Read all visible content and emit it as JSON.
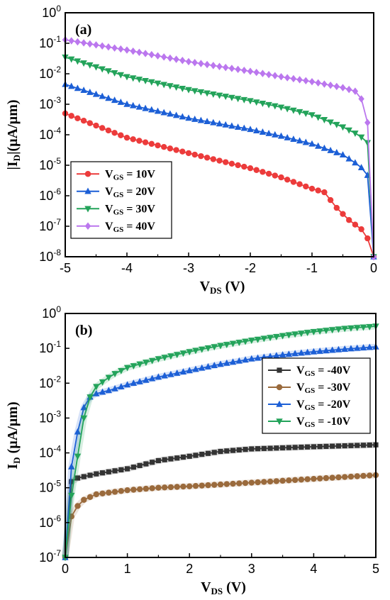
{
  "chart_data": [
    {
      "type": "line",
      "panel_label": "(a)",
      "xlabel": "V",
      "xlabel_sub": "DS",
      "xlabel_unit": " (V)",
      "ylabel": "|I",
      "ylabel_sub": "D",
      "ylabel_unit": "|(µA/µm)",
      "xlim": [
        -5,
        0
      ],
      "ylim_log10": [
        -8,
        0
      ],
      "yscale": "log",
      "xticks": [
        "-5",
        "-4",
        "-3",
        "-2",
        "-1",
        "0"
      ],
      "yticks": [
        {
          "base": "10",
          "exp": "0"
        },
        {
          "base": "10",
          "exp": "-1"
        },
        {
          "base": "10",
          "exp": "-2"
        },
        {
          "base": "10",
          "exp": "-3"
        },
        {
          "base": "10",
          "exp": "-4"
        },
        {
          "base": "10",
          "exp": "-5"
        },
        {
          "base": "10",
          "exp": "-6"
        },
        {
          "base": "10",
          "exp": "-7"
        },
        {
          "base": "10",
          "exp": "-8"
        }
      ],
      "legend_position": "bottom-left",
      "series": [
        {
          "name_main": "V",
          "name_sub": "GS",
          "name_rest": " = 10V",
          "color": "#ec3b3b",
          "marker": "circle",
          "x": [
            -5,
            -4,
            -3,
            -2,
            -1.5,
            -1,
            -0.8,
            -0.6,
            -0.4,
            -0.2,
            -0.1,
            -0.05,
            0
          ],
          "y": [
            0.0005,
            8e-05,
            2.5e-05,
            8e-06,
            4e-06,
            1.7e-06,
            1.3e-06,
            4e-07,
            1.6e-07,
            8e-08,
            4e-08,
            2.5e-08,
            1e-08
          ]
        },
        {
          "name_main": "V",
          "name_sub": "GS",
          "name_rest": " = 20V",
          "color": "#1c5fd6",
          "marker": "triangle-up",
          "x": [
            -5,
            -4,
            -3,
            -2,
            -1.5,
            -1,
            -0.5,
            -0.3,
            -0.15,
            -0.08,
            -0.03,
            0
          ],
          "y": [
            0.0045,
            0.001,
            0.00035,
            0.00015,
            9e-05,
            5e-05,
            2.2e-05,
            1.2e-05,
            7e-06,
            4e-06,
            1e-06,
            1e-08
          ]
        },
        {
          "name_main": "V",
          "name_sub": "GS",
          "name_rest": " = 30V",
          "color": "#23a35a",
          "marker": "triangle-down",
          "x": [
            -5,
            -4,
            -3,
            -2,
            -1.5,
            -1,
            -0.5,
            -0.25,
            -0.15,
            -0.08,
            -0.03,
            0
          ],
          "y": [
            0.035,
            0.008,
            0.003,
            0.0013,
            0.0008,
            0.00045,
            0.00018,
            0.0001,
            7e-05,
            5e-05,
            1e-06,
            1e-08
          ]
        },
        {
          "name_main": "V",
          "name_sub": "GS",
          "name_rest": " = 40V",
          "color": "#bb77ee",
          "marker": "diamond",
          "x": [
            -5,
            -4,
            -3,
            -2,
            -1.5,
            -1,
            -0.5,
            -0.25,
            -0.15,
            -0.08,
            -0.03,
            0
          ],
          "y": [
            0.13,
            0.06,
            0.025,
            0.012,
            0.008,
            0.0055,
            0.0035,
            0.0025,
            0.0009,
            0.00015,
            1e-06,
            1e-08
          ]
        }
      ]
    },
    {
      "type": "line",
      "panel_label": "(b)",
      "xlabel": "V",
      "xlabel_sub": "DS",
      "xlabel_unit": " (V)",
      "ylabel": "I",
      "ylabel_sub": "D",
      "ylabel_unit": " (µA/µm)",
      "xlim": [
        0,
        5
      ],
      "ylim_log10": [
        -7,
        0
      ],
      "yscale": "log",
      "xticks": [
        "0",
        "1",
        "2",
        "3",
        "4",
        "5"
      ],
      "yticks": [
        {
          "base": "10",
          "exp": "0"
        },
        {
          "base": "10",
          "exp": "-1"
        },
        {
          "base": "10",
          "exp": "-2"
        },
        {
          "base": "10",
          "exp": "-3"
        },
        {
          "base": "10",
          "exp": "-4"
        },
        {
          "base": "10",
          "exp": "-5"
        },
        {
          "base": "10",
          "exp": "-6"
        },
        {
          "base": "10",
          "exp": "-7"
        }
      ],
      "legend_position": "top-right",
      "series": [
        {
          "name_main": "V",
          "name_sub": "GS",
          "name_rest": " = -40V",
          "color": "#333333",
          "marker": "square",
          "x": [
            0,
            0.05,
            0.1,
            0.2,
            0.5,
            1,
            1.5,
            2,
            2.5,
            3,
            4,
            5
          ],
          "y": [
            1e-07,
            1e-05,
            1.5e-05,
            1.9e-05,
            2.5e-05,
            3.5e-05,
            6e-05,
            8e-05,
            0.00011,
            0.00013,
            0.00015,
            0.00017
          ]
        },
        {
          "name_main": "V",
          "name_sub": "GS",
          "name_rest": " = -30V",
          "color": "#9a6a3c",
          "marker": "circle",
          "x": [
            0,
            0.05,
            0.1,
            0.2,
            0.3,
            0.5,
            1,
            1.5,
            2,
            3,
            4,
            5
          ],
          "y": [
            1e-07,
            7e-07,
            1.5e-06,
            3e-06,
            4.5e-06,
            6.5e-06,
            8.5e-06,
            1e-05,
            1.1e-05,
            1.4e-05,
            1.8e-05,
            2.3e-05
          ]
        },
        {
          "name_main": "V",
          "name_sub": "GS",
          "name_rest": " = -20V",
          "color": "#1c5fd6",
          "marker": "triangle-up",
          "x": [
            0,
            0.05,
            0.1,
            0.15,
            0.2,
            0.25,
            0.3,
            0.4,
            0.5,
            0.75,
            1,
            1.5,
            2,
            2.5,
            3,
            3.5,
            4,
            4.5,
            5
          ],
          "y": [
            1e-07,
            5e-06,
            4e-05,
            0.00013,
            0.0004,
            0.001,
            0.002,
            0.004,
            0.005,
            0.0065,
            0.009,
            0.015,
            0.023,
            0.035,
            0.05,
            0.065,
            0.08,
            0.095,
            0.11
          ]
        },
        {
          "name_main": "V",
          "name_sub": "GS",
          "name_rest": " = -10V",
          "color": "#23a35a",
          "marker": "triangle-down",
          "x": [
            0,
            0.05,
            0.1,
            0.15,
            0.2,
            0.25,
            0.3,
            0.4,
            0.5,
            0.75,
            1,
            1.5,
            2,
            2.5,
            3,
            3.5,
            4,
            4.5,
            5
          ],
          "y": [
            1e-07,
            1.5e-06,
            6e-06,
            2e-05,
            8e-05,
            0.0003,
            0.001,
            0.004,
            0.008,
            0.017,
            0.028,
            0.05,
            0.08,
            0.12,
            0.17,
            0.23,
            0.3,
            0.37,
            0.43
          ]
        }
      ]
    }
  ]
}
